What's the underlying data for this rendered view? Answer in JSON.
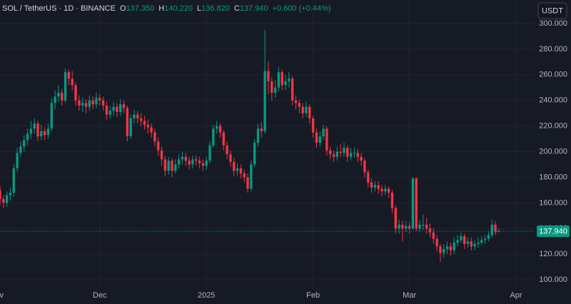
{
  "chart_data": {
    "type": "candlestick",
    "header": {
      "symbol": "SOL / TetherUS · 1D · BINANCE",
      "open_label": "O",
      "open": "137.350",
      "high_label": "H",
      "high": "140.220",
      "low_label": "L",
      "low": "136.820",
      "close_label": "C",
      "close": "137.940",
      "change": "+0.600 (+0.44%)"
    },
    "currency": "USDT",
    "up_color": "#089981",
    "down_color": "#f23645",
    "grid": true,
    "last_price": {
      "value": 137.94,
      "label": "137.940"
    },
    "xlim": [
      0,
      155.6
    ],
    "xticks": [
      {
        "value": -1,
        "label": "Nov"
      },
      {
        "value": 29,
        "label": "Dec"
      },
      {
        "value": 60,
        "label": "2025"
      },
      {
        "value": 91,
        "label": "Feb"
      },
      {
        "value": 119,
        "label": "Mar"
      },
      {
        "value": 150,
        "label": "Apr"
      }
    ],
    "ylim": [
      92.8,
      318.4
    ],
    "yticks": [
      {
        "value": 100,
        "label": "100.000"
      },
      {
        "value": 120,
        "label": "120.000"
      },
      {
        "value": 140,
        "label": "140.000"
      },
      {
        "value": 160,
        "label": "160.000"
      },
      {
        "value": 180,
        "label": "180.000"
      },
      {
        "value": 200,
        "label": "200.000"
      },
      {
        "value": 220,
        "label": "220.000"
      },
      {
        "value": 240,
        "label": "240.000"
      },
      {
        "value": 260,
        "label": "260.000"
      },
      {
        "value": 280,
        "label": "280.000"
      },
      {
        "value": 300,
        "label": "300.000"
      }
    ],
    "ohlc": [
      [
        170,
        173,
        158,
        163
      ],
      [
        163,
        166,
        156,
        160
      ],
      [
        160,
        169,
        157,
        166
      ],
      [
        166,
        172,
        162,
        168
      ],
      [
        168,
        190,
        165,
        187
      ],
      [
        187,
        203,
        184,
        199
      ],
      [
        199,
        208,
        196,
        204
      ],
      [
        204,
        213,
        200,
        209
      ],
      [
        209,
        218,
        205,
        214
      ],
      [
        214,
        224,
        210,
        218
      ],
      [
        218,
        226,
        214,
        222
      ],
      [
        222,
        224,
        208,
        212
      ],
      [
        212,
        221,
        209,
        216
      ],
      [
        216,
        219,
        209,
        213
      ],
      [
        213,
        222,
        210,
        218
      ],
      [
        218,
        242,
        216,
        238
      ],
      [
        238,
        248,
        233,
        243
      ],
      [
        243,
        252,
        239,
        246
      ],
      [
        246,
        249,
        236,
        240
      ],
      [
        240,
        265,
        238,
        262
      ],
      [
        262,
        264,
        252,
        257
      ],
      [
        257,
        263,
        248,
        252
      ],
      [
        252,
        254,
        236,
        240
      ],
      [
        240,
        244,
        232,
        236
      ],
      [
        236,
        242,
        231,
        238
      ],
      [
        238,
        241,
        230,
        235
      ],
      [
        235,
        244,
        232,
        240
      ],
      [
        240,
        243,
        233,
        237
      ],
      [
        237,
        246,
        234,
        242
      ],
      [
        242,
        245,
        236,
        240
      ],
      [
        240,
        243,
        232,
        236
      ],
      [
        236,
        239,
        225,
        229
      ],
      [
        229,
        236,
        226,
        232
      ],
      [
        232,
        239,
        228,
        235
      ],
      [
        235,
        238,
        227,
        231
      ],
      [
        231,
        241,
        228,
        237
      ],
      [
        237,
        240,
        230,
        234
      ],
      [
        234,
        236,
        208,
        212
      ],
      [
        212,
        229,
        210,
        226
      ],
      [
        226,
        233,
        222,
        229
      ],
      [
        229,
        232,
        222,
        226
      ],
      [
        226,
        230,
        220,
        224
      ],
      [
        224,
        228,
        217,
        221
      ],
      [
        221,
        225,
        214,
        219
      ],
      [
        219,
        222,
        211,
        215
      ],
      [
        215,
        218,
        204,
        208
      ],
      [
        208,
        211,
        197,
        201
      ],
      [
        201,
        204,
        189,
        194
      ],
      [
        194,
        197,
        181,
        185
      ],
      [
        185,
        196,
        182,
        193
      ],
      [
        193,
        195,
        180,
        185
      ],
      [
        185,
        194,
        183,
        190
      ],
      [
        190,
        198,
        187,
        194
      ],
      [
        194,
        200,
        190,
        196
      ],
      [
        196,
        199,
        189,
        193
      ],
      [
        193,
        196,
        186,
        190
      ],
      [
        190,
        197,
        187,
        194
      ],
      [
        194,
        197,
        189,
        193
      ],
      [
        193,
        196,
        187,
        191
      ],
      [
        191,
        194,
        185,
        189
      ],
      [
        189,
        196,
        186,
        193
      ],
      [
        193,
        208,
        191,
        205
      ],
      [
        205,
        221,
        203,
        218
      ],
      [
        218,
        224,
        214,
        220
      ],
      [
        220,
        222,
        211,
        215
      ],
      [
        215,
        217,
        201,
        205
      ],
      [
        205,
        208,
        194,
        198
      ],
      [
        198,
        201,
        188,
        192
      ],
      [
        192,
        195,
        181,
        185
      ],
      [
        185,
        191,
        181,
        187
      ],
      [
        187,
        190,
        179,
        183
      ],
      [
        183,
        186,
        176,
        180
      ],
      [
        180,
        183,
        168,
        171
      ],
      [
        171,
        193,
        169,
        190
      ],
      [
        190,
        210,
        188,
        207
      ],
      [
        207,
        222,
        204,
        218
      ],
      [
        218,
        223,
        211,
        216
      ],
      [
        216,
        295,
        214,
        263
      ],
      [
        263,
        270,
        245,
        255
      ],
      [
        255,
        258,
        240,
        246
      ],
      [
        246,
        256,
        242,
        250
      ],
      [
        250,
        266,
        247,
        262
      ],
      [
        262,
        264,
        248,
        252
      ],
      [
        252,
        260,
        248,
        255
      ],
      [
        255,
        262,
        250,
        257
      ],
      [
        257,
        259,
        236,
        240
      ],
      [
        240,
        244,
        233,
        238
      ],
      [
        238,
        241,
        230,
        235
      ],
      [
        235,
        238,
        226,
        230
      ],
      [
        230,
        239,
        227,
        235
      ],
      [
        235,
        237,
        222,
        226
      ],
      [
        226,
        228,
        211,
        215
      ],
      [
        215,
        218,
        203,
        207
      ],
      [
        207,
        216,
        204,
        212
      ],
      [
        212,
        221,
        209,
        218
      ],
      [
        218,
        220,
        197,
        201
      ],
      [
        201,
        204,
        194,
        198
      ],
      [
        198,
        201,
        192,
        196
      ],
      [
        196,
        204,
        193,
        200
      ],
      [
        200,
        206,
        196,
        199
      ],
      [
        199,
        207,
        196,
        203
      ],
      [
        203,
        205,
        192,
        196
      ],
      [
        196,
        203,
        193,
        199
      ],
      [
        199,
        203,
        195,
        199
      ],
      [
        199,
        202,
        192,
        196
      ],
      [
        196,
        199,
        189,
        193
      ],
      [
        193,
        195,
        180,
        184
      ],
      [
        184,
        186,
        172,
        176
      ],
      [
        176,
        179,
        168,
        172
      ],
      [
        172,
        177,
        169,
        174
      ],
      [
        174,
        177,
        167,
        171
      ],
      [
        171,
        174,
        165,
        169
      ],
      [
        169,
        174,
        166,
        171
      ],
      [
        171,
        173,
        164,
        168
      ],
      [
        168,
        170,
        152,
        156
      ],
      [
        156,
        158,
        136,
        140
      ],
      [
        140,
        147,
        136,
        143
      ],
      [
        143,
        146,
        130,
        140
      ],
      [
        140,
        146,
        137,
        142
      ],
      [
        142,
        145,
        136,
        140
      ],
      [
        140,
        180,
        139,
        179
      ],
      [
        179,
        180,
        138,
        140
      ],
      [
        140,
        147,
        137,
        143
      ],
      [
        143,
        151,
        139,
        143
      ],
      [
        143,
        148,
        136,
        140
      ],
      [
        140,
        144,
        133,
        137
      ],
      [
        137,
        140,
        128,
        132
      ],
      [
        132,
        135,
        122,
        126
      ],
      [
        126,
        128,
        114,
        121
      ],
      [
        121,
        128,
        117,
        124
      ],
      [
        124,
        130,
        120,
        126
      ],
      [
        126,
        129,
        119,
        123
      ],
      [
        123,
        133,
        120,
        129
      ],
      [
        129,
        135,
        126,
        131
      ],
      [
        131,
        137,
        129,
        134
      ],
      [
        134,
        136,
        124,
        128
      ],
      [
        128,
        133,
        125,
        130
      ],
      [
        130,
        133,
        123,
        126
      ],
      [
        126,
        131,
        123,
        128
      ],
      [
        128,
        133,
        125,
        129
      ],
      [
        129,
        134,
        127,
        131
      ],
      [
        131,
        135,
        128,
        132
      ],
      [
        132,
        138,
        130,
        135
      ],
      [
        135,
        147,
        133,
        143
      ],
      [
        143,
        146,
        135,
        137.35
      ],
      [
        137.35,
        140.22,
        136.82,
        137.94
      ]
    ]
  }
}
